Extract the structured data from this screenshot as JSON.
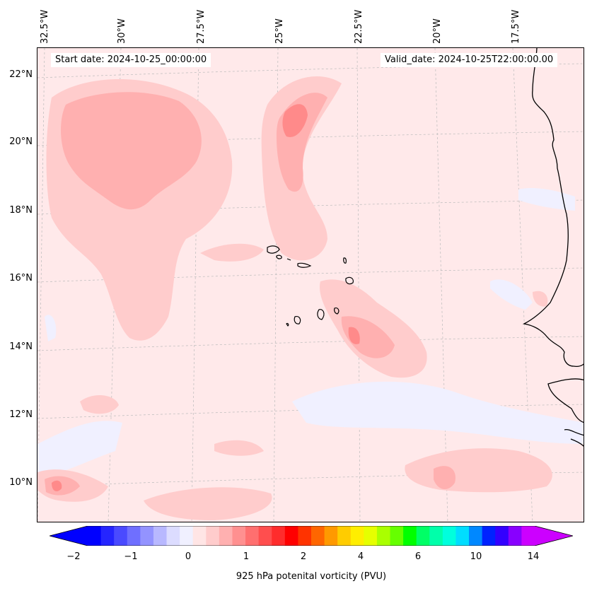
{
  "map": {
    "start_date": "Start date: 2024-10-25_00:00:00",
    "valid_date": "Valid_date: 2024-10-25T22:00:00.00",
    "longitude_labels": [
      "32.5°W",
      "30°W",
      "27.5°W",
      "25°W",
      "22.5°W",
      "20°W",
      "17.5°W"
    ],
    "latitude_labels": [
      "22°N",
      "20°N",
      "18°N",
      "16°N",
      "14°N",
      "12°N",
      "10°N"
    ],
    "background_color": "#ffe9ea",
    "coastline_color": "#000000"
  },
  "colorbar": {
    "label": "925 hPa potenital vorticity (PVU)",
    "tick_labels": [
      "−2",
      "−1",
      "0",
      "1",
      "2",
      "4",
      "6",
      "10",
      "14"
    ],
    "colors": [
      "#0000ff",
      "#2525ff",
      "#4a4aff",
      "#6f6fff",
      "#9393ff",
      "#b8b8ff",
      "#dcdcff",
      "#f0f0ff",
      "#ffe5e5",
      "#ffcccc",
      "#ffb0b0",
      "#ff9090",
      "#ff6f6f",
      "#ff4e4e",
      "#ff2c2c",
      "#ff0000",
      "#ff3300",
      "#ff6600",
      "#ff9900",
      "#ffcc00",
      "#ffee00",
      "#e6ff00",
      "#aaff00",
      "#66ff00",
      "#00ff00",
      "#00ff66",
      "#00ffaa",
      "#00ffdd",
      "#00ddff",
      "#0088ff",
      "#0022ff",
      "#3300ff",
      "#8800ff",
      "#cc00ff"
    ],
    "under_color": "#0000ff",
    "over_color": "#cc00ff"
  }
}
